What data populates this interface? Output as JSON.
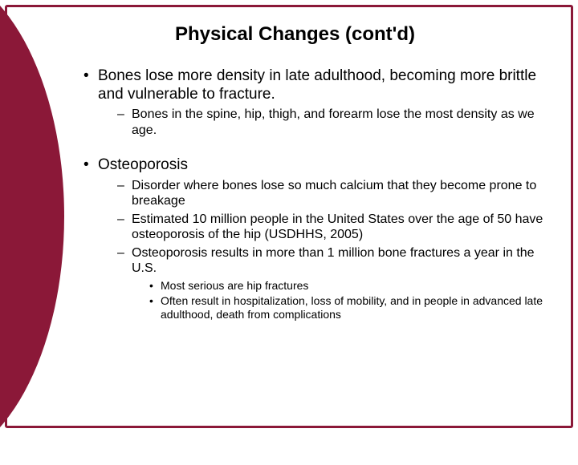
{
  "colors": {
    "accent": "#8b1838",
    "background": "#ffffff",
    "text": "#000000"
  },
  "typography": {
    "title_fontsize": 24,
    "lvl1_fontsize": 19,
    "lvl2_fontsize": 16,
    "lvl3_fontsize": 14,
    "font_family": "Arial"
  },
  "slide": {
    "title": "Physical Changes (cont'd)",
    "bullets": [
      {
        "text": "Bones lose more density in late adulthood, becoming more brittle and vulnerable to fracture.",
        "sub": [
          {
            "text": "Bones in the spine, hip, thigh, and forearm lose the most density as we age."
          }
        ]
      },
      {
        "text": "Osteoporosis",
        "sub": [
          {
            "text": "Disorder where bones lose so much calcium that they become prone to breakage"
          },
          {
            "text": "Estimated 10 million people in the United States over the age of 50 have osteoporosis of the hip (USDHHS, 2005)"
          },
          {
            "text": "Osteoporosis results in more than 1 million bone fractures a year in the U.S.",
            "sub": [
              {
                "text": "Most serious are hip fractures"
              },
              {
                "text": "Often result in hospitalization, loss of mobility, and in people in advanced late adulthood, death from complications"
              }
            ]
          }
        ]
      }
    ]
  }
}
